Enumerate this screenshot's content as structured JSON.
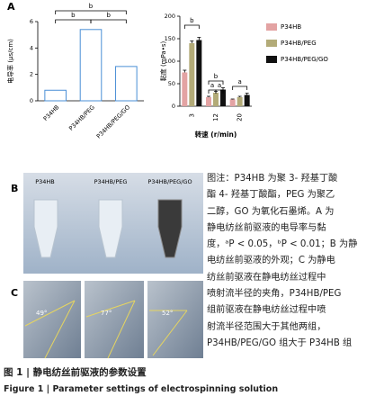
{
  "chart_data": [
    {
      "type": "bar",
      "panel_label": "A",
      "y_label": "电导率 (μs/cm)",
      "categories": [
        "P34HB",
        "P34HB/PEG",
        "P34HB/PEG/GO"
      ],
      "values": [
        0.8,
        5.4,
        2.6
      ],
      "color": "#ffffff",
      "edge_color": "#4a8fd6",
      "ylim": [
        0,
        6
      ],
      "yticks": [
        0,
        2,
        4,
        6
      ],
      "annotations": [
        "b",
        "b",
        "b"
      ]
    },
    {
      "type": "bar",
      "y_label": "黏度 (mPa•s)",
      "x_label": "转速 (r/min)",
      "categories": [
        "3",
        "12",
        "20"
      ],
      "series": [
        {
          "name": "P34HB",
          "color": "#e3a3a3",
          "values": [
            75,
            20,
            15
          ],
          "errors": [
            5,
            2,
            1
          ]
        },
        {
          "name": "P34HB/PEG",
          "color": "#b3ab78",
          "values": [
            140,
            30,
            20
          ],
          "errors": [
            5,
            3,
            2
          ]
        },
        {
          "name": "P34HB/PEG/GO",
          "color": "#111111",
          "values": [
            147,
            37,
            25
          ],
          "errors": [
            6,
            4,
            4
          ]
        }
      ],
      "ylim": [
        0,
        200
      ],
      "yticks": [
        0,
        50,
        100,
        150,
        200
      ],
      "legend": "right",
      "annotations": [
        "b",
        "b",
        "a",
        "a",
        "a"
      ]
    }
  ],
  "photos": {
    "label_b": "B",
    "label_c": "C",
    "tubes": [
      "P34HB",
      "P34HB/PEG",
      "P34HB/PEG/GO"
    ],
    "angles": [
      "49°",
      "77°",
      "52°"
    ]
  },
  "caption": {
    "note_lines": [
      "图注：P34HB 为聚 3- 羟基丁酸",
      "酯 4- 羟基丁酸酯，PEG 为聚乙",
      "二醇，GO 为氧化石墨烯。A 为",
      "静电纺丝前驱液的电导率与黏",
      "度，ᵃP < 0.05，ᵇP < 0.01；B 为静",
      "电纺丝前驱液的外观；C 为静电",
      "纺丝前驱液在静电纺丝过程中",
      "喷射流半径的夹角，P34HB/PEG",
      "组前驱液在静电纺丝过程中喷",
      "射流半径范围大于其他两组，",
      "P34HB/PEG/GO 组大于 P34HB 组"
    ],
    "title_cn": "图 1  |  静电纺丝前驱液的参数设置",
    "title_en": "Figure 1  |  Parameter settings of electrospinning solution"
  }
}
